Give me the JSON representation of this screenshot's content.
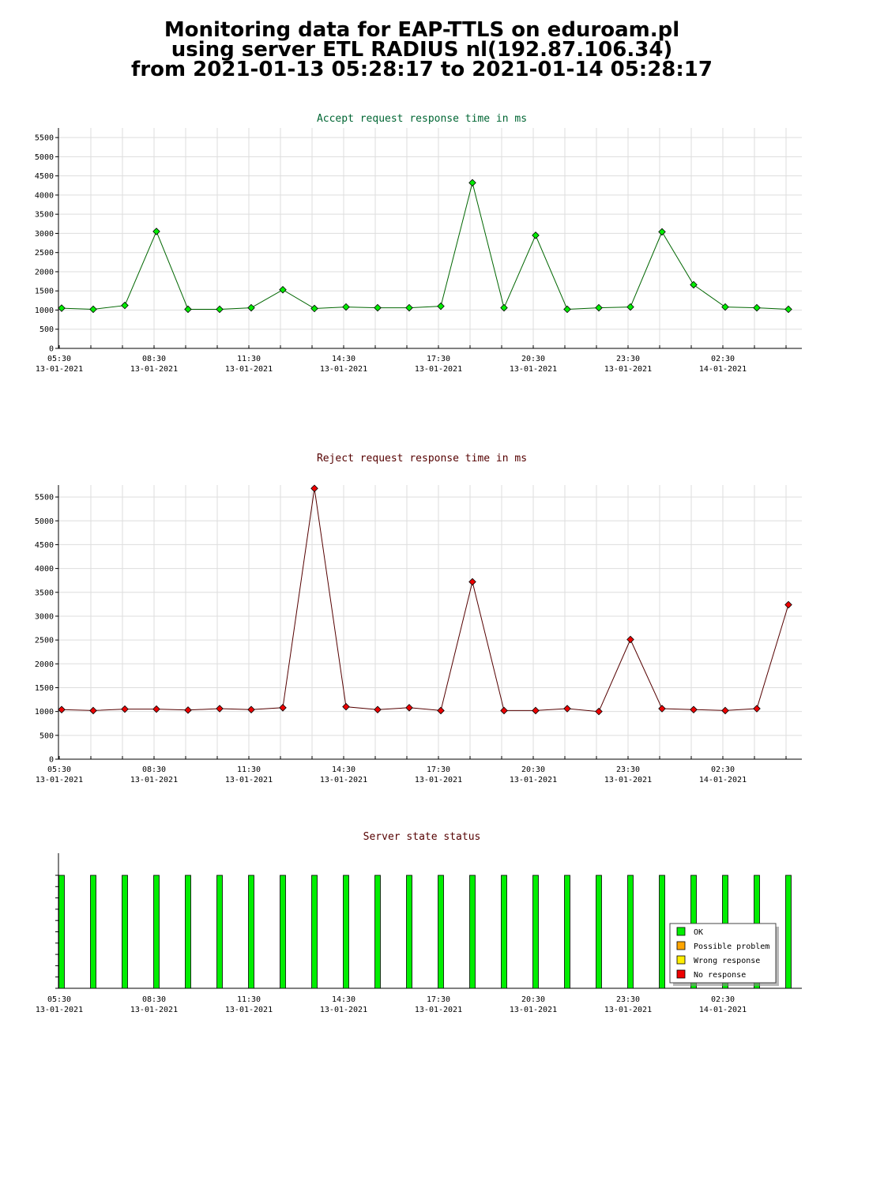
{
  "title_lines": [
    "Monitoring data for EAP-TTLS on eduroam.pl",
    "using server ETL RADIUS nl(192.87.106.34)",
    "from 2021-01-13 05:28:17 to 2021-01-14 05:28:17"
  ],
  "colors": {
    "accept": "#00ee00",
    "accept_line": "#006600",
    "reject": "#ee0000",
    "reject_line": "#550000",
    "ok": "#00ee00",
    "grid": "#dddddd"
  },
  "chart_data": [
    {
      "type": "line",
      "title": "Accept request response time in ms",
      "x_tick_labels": [
        [
          "05:30",
          "13-01-2021"
        ],
        [
          "08:30",
          "13-01-2021"
        ],
        [
          "11:30",
          "13-01-2021"
        ],
        [
          "14:30",
          "13-01-2021"
        ],
        [
          "17:30",
          "13-01-2021"
        ],
        [
          "20:30",
          "13-01-2021"
        ],
        [
          "23:30",
          "13-01-2021"
        ],
        [
          "02:30",
          "14-01-2021"
        ]
      ],
      "y_ticks": [
        0,
        500,
        1000,
        1500,
        2000,
        2500,
        3000,
        3500,
        4000,
        4500,
        5000,
        5500
      ],
      "ylim": [
        0,
        5750
      ],
      "grid": true,
      "series": [
        {
          "values": [
            1050,
            1020,
            1120,
            3050,
            1020,
            1020,
            1060,
            1530,
            1040,
            1080,
            1060,
            1060,
            1100,
            4320,
            1060,
            2950,
            1020,
            1060,
            1080,
            3040,
            1660,
            1080,
            1060,
            1020
          ]
        }
      ]
    },
    {
      "type": "line",
      "title": "Reject request response time in ms",
      "x_tick_labels": [
        [
          "05:30",
          "13-01-2021"
        ],
        [
          "08:30",
          "13-01-2021"
        ],
        [
          "11:30",
          "13-01-2021"
        ],
        [
          "14:30",
          "13-01-2021"
        ],
        [
          "17:30",
          "13-01-2021"
        ],
        [
          "20:30",
          "13-01-2021"
        ],
        [
          "23:30",
          "13-01-2021"
        ],
        [
          "02:30",
          "14-01-2021"
        ]
      ],
      "y_ticks": [
        0,
        500,
        1000,
        1500,
        2000,
        2500,
        3000,
        3500,
        4000,
        4500,
        5000,
        5500
      ],
      "ylim": [
        0,
        5750
      ],
      "grid": true,
      "series": [
        {
          "values": [
            1040,
            1020,
            1050,
            1050,
            1030,
            1060,
            1040,
            1080,
            5680,
            1100,
            1040,
            1080,
            1020,
            3720,
            1020,
            1020,
            1060,
            1000,
            2510,
            1060,
            1040,
            1020,
            1060,
            3240
          ]
        }
      ]
    },
    {
      "type": "bar",
      "title": "Server state status",
      "x_tick_labels": [
        [
          "05:30",
          "13-01-2021"
        ],
        [
          "08:30",
          "13-01-2021"
        ],
        [
          "11:30",
          "13-01-2021"
        ],
        [
          "14:30",
          "13-01-2021"
        ],
        [
          "17:30",
          "13-01-2021"
        ],
        [
          "20:30",
          "13-01-2021"
        ],
        [
          "23:30",
          "13-01-2021"
        ],
        [
          "02:30",
          "14-01-2021"
        ]
      ],
      "states": [
        "OK",
        "OK",
        "OK",
        "OK",
        "OK",
        "OK",
        "OK",
        "OK",
        "OK",
        "OK",
        "OK",
        "OK",
        "OK",
        "OK",
        "OK",
        "OK",
        "OK",
        "OK",
        "OK",
        "OK",
        "OK",
        "OK",
        "OK",
        "OK"
      ],
      "legend_position": "bottom-right",
      "legend": [
        {
          "label": "OK",
          "color": "#00ee00"
        },
        {
          "label": "Possible problem",
          "color": "#ffa500"
        },
        {
          "label": "Wrong response",
          "color": "#ffee00"
        },
        {
          "label": "No response",
          "color": "#ee0000"
        }
      ]
    }
  ]
}
